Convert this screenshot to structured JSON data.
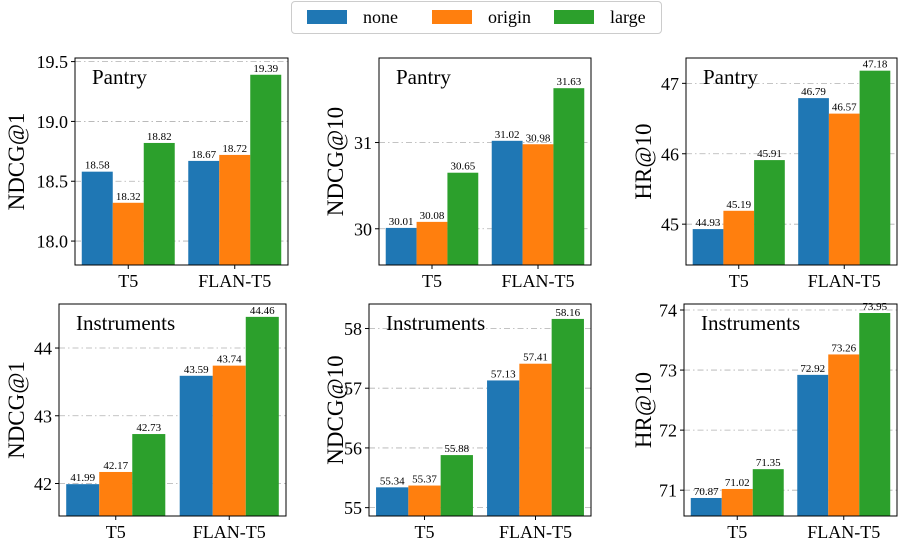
{
  "colors": {
    "none": "#1f77b4",
    "origin": "#ff7f0e",
    "large": "#2ca02c",
    "grid": "#b0b0b0"
  },
  "legend": [
    {
      "label": "none",
      "color": "#1f77b4"
    },
    {
      "label": "origin",
      "color": "#ff7f0e"
    },
    {
      "label": "large",
      "color": "#2ca02c"
    }
  ],
  "chart_data": [
    {
      "type": "bar",
      "dataset": "Pantry",
      "ylabel": "NDCG@1",
      "categories": [
        "T5",
        "FLAN-T5"
      ],
      "ylim": [
        17.8,
        19.53
      ],
      "yticks": [
        18.0,
        18.5,
        19.0,
        19.5
      ],
      "tick_decimals": 1,
      "series": [
        {
          "name": "none",
          "values": [
            18.58,
            18.67
          ]
        },
        {
          "name": "origin",
          "values": [
            18.32,
            18.72
          ]
        },
        {
          "name": "large",
          "values": [
            18.82,
            19.39
          ]
        }
      ]
    },
    {
      "type": "bar",
      "dataset": "Pantry",
      "ylabel": "NDCG@10",
      "categories": [
        "T5",
        "FLAN-T5"
      ],
      "ylim": [
        29.58,
        31.98
      ],
      "yticks": [
        30,
        31
      ],
      "tick_decimals": 0,
      "series": [
        {
          "name": "none",
          "values": [
            30.01,
            31.02
          ]
        },
        {
          "name": "origin",
          "values": [
            30.08,
            30.98
          ]
        },
        {
          "name": "large",
          "values": [
            30.65,
            31.63
          ]
        }
      ]
    },
    {
      "type": "bar",
      "dataset": "Pantry",
      "ylabel": "HR@10",
      "categories": [
        "T5",
        "FLAN-T5"
      ],
      "ylim": [
        44.42,
        47.36
      ],
      "yticks": [
        45,
        46,
        47
      ],
      "tick_decimals": 0,
      "series": [
        {
          "name": "none",
          "values": [
            44.93,
            46.79
          ]
        },
        {
          "name": "origin",
          "values": [
            45.19,
            46.57
          ]
        },
        {
          "name": "large",
          "values": [
            45.91,
            47.18
          ]
        }
      ]
    },
    {
      "type": "bar",
      "dataset": "Instruments",
      "ylabel": "NDCG@1",
      "categories": [
        "T5",
        "FLAN-T5"
      ],
      "ylim": [
        41.52,
        44.65
      ],
      "yticks": [
        42,
        43,
        44
      ],
      "tick_decimals": 0,
      "series": [
        {
          "name": "none",
          "values": [
            41.99,
            43.59
          ]
        },
        {
          "name": "origin",
          "values": [
            42.17,
            43.74
          ]
        },
        {
          "name": "large",
          "values": [
            42.73,
            44.46
          ]
        }
      ]
    },
    {
      "type": "bar",
      "dataset": "Instruments",
      "ylabel": "NDCG@10",
      "categories": [
        "T5",
        "FLAN-T5"
      ],
      "ylim": [
        54.86,
        58.41
      ],
      "yticks": [
        55,
        56,
        57,
        58
      ],
      "tick_decimals": 0,
      "series": [
        {
          "name": "none",
          "values": [
            55.34,
            57.13
          ]
        },
        {
          "name": "origin",
          "values": [
            55.37,
            57.41
          ]
        },
        {
          "name": "large",
          "values": [
            55.88,
            58.16
          ]
        }
      ]
    },
    {
      "type": "bar",
      "dataset": "Instruments",
      "ylabel": "HR@10",
      "categories": [
        "T5",
        "FLAN-T5"
      ],
      "ylim": [
        70.57,
        74.1
      ],
      "yticks": [
        71,
        72,
        73,
        74
      ],
      "tick_decimals": 0,
      "series": [
        {
          "name": "none",
          "values": [
            70.87,
            72.92
          ]
        },
        {
          "name": "origin",
          "values": [
            71.02,
            73.26
          ]
        },
        {
          "name": "large",
          "values": [
            71.35,
            73.95
          ]
        }
      ]
    }
  ]
}
